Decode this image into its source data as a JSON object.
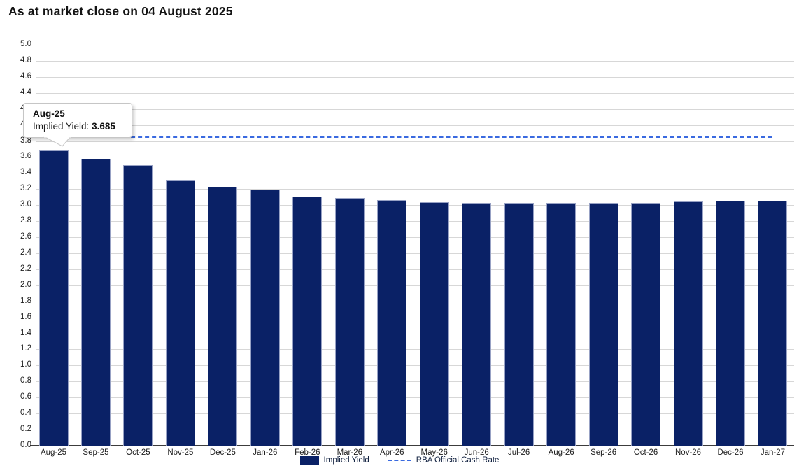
{
  "title": "As at market close on 04 August 2025",
  "tooltip": {
    "category": "Aug-25",
    "series_label": "Implied Yield:",
    "value": "3.685"
  },
  "legend": {
    "bar_label": "Implied Yield",
    "line_label": "RBA Official Cash Rate"
  },
  "colors": {
    "bar_fill": "#0a2166",
    "bar_border": "#97a1c4",
    "cash_rate_line": "#3a6ae0",
    "gridline": "#d7d7d7",
    "axis": "#3c3c3c"
  },
  "chart_data": {
    "type": "bar",
    "title": "As at market close on 04 August 2025",
    "categories": [
      "Aug-25",
      "Sep-25",
      "Oct-25",
      "Nov-25",
      "Dec-25",
      "Jan-26",
      "Feb-26",
      "Mar-26",
      "Apr-26",
      "May-26",
      "Jun-26",
      "Jul-26",
      "Aug-26",
      "Sep-26",
      "Oct-26",
      "Nov-26",
      "Dec-26",
      "Jan-27"
    ],
    "series": [
      {
        "name": "Implied Yield",
        "type": "bar",
        "color": "#0a2166",
        "values": [
          3.685,
          3.575,
          3.495,
          3.305,
          3.225,
          3.195,
          3.105,
          3.09,
          3.065,
          3.035,
          3.03,
          3.03,
          3.03,
          3.03,
          3.03,
          3.045,
          3.055,
          3.055
        ]
      },
      {
        "name": "RBA Official Cash Rate",
        "type": "line-dashed",
        "color": "#3a6ae0",
        "constant_value": 3.85
      }
    ],
    "xlabel": "",
    "ylabel": "",
    "ylim": [
      0,
      5
    ],
    "ytick_step": 0.2,
    "grid": "horizontal",
    "legend_position": "bottom",
    "annotation": {
      "category": "Aug-25",
      "text": "Implied Yield: 3.685"
    }
  }
}
